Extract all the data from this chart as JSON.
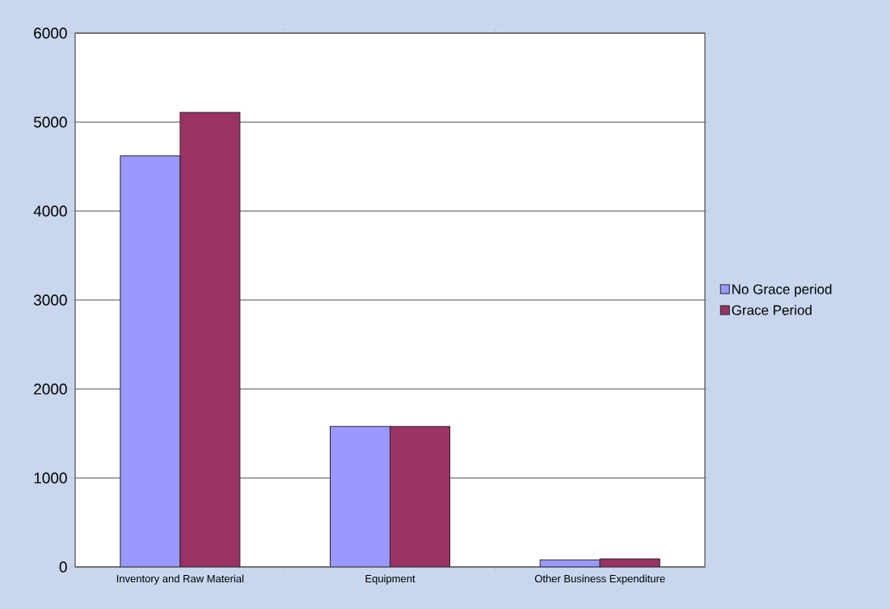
{
  "chart_data": {
    "type": "bar",
    "categories": [
      "Inventory and Raw Material",
      "Equipment",
      "Other Business Expenditure"
    ],
    "series": [
      {
        "name": "No Grace period",
        "color": "#9999ff",
        "values": [
          4620,
          1580,
          80
        ]
      },
      {
        "name": "Grace Period",
        "color": "#993366",
        "values": [
          5110,
          1580,
          90
        ]
      }
    ],
    "ylim": [
      0,
      6000
    ],
    "yticks": [
      0,
      1000,
      2000,
      3000,
      4000,
      5000,
      6000
    ],
    "grid": "y",
    "legend": "right"
  }
}
